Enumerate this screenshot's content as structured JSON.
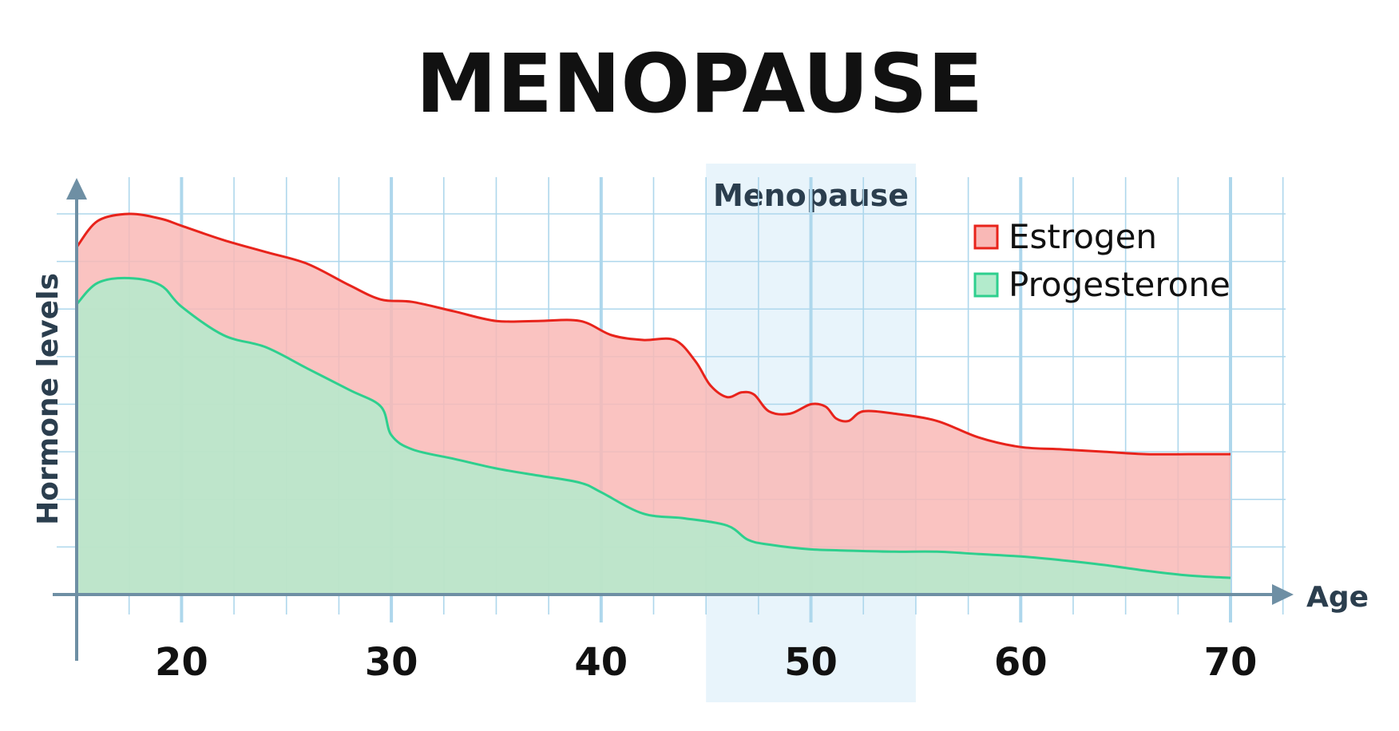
{
  "title": "MENOPAUSE",
  "chart_data": {
    "type": "area",
    "ylabel": "Hormone levels",
    "xlabel": "Age",
    "xlim": [
      15,
      70
    ],
    "ylim": [
      0,
      8
    ],
    "x_ticks": [
      20,
      30,
      40,
      50,
      60,
      70
    ],
    "x_tick_labels": [
      "20",
      "30",
      "40",
      "50",
      "60",
      "70"
    ],
    "grid": true,
    "legend_placement": "top-right",
    "band": {
      "label": "Menopause",
      "x_start": 45,
      "x_end": 55,
      "color": "#e8f4fb"
    },
    "series": [
      {
        "name": "Estrogen",
        "stroke": "#e8231b",
        "fill": "#f9b8b6",
        "points": [
          [
            15,
            7.3
          ],
          [
            16,
            7.85
          ],
          [
            17.5,
            8.0
          ],
          [
            19,
            7.9
          ],
          [
            20,
            7.75
          ],
          [
            22,
            7.45
          ],
          [
            24,
            7.2
          ],
          [
            26,
            6.95
          ],
          [
            28,
            6.5
          ],
          [
            29.5,
            6.2
          ],
          [
            31,
            6.15
          ],
          [
            33,
            5.95
          ],
          [
            35,
            5.75
          ],
          [
            37,
            5.75
          ],
          [
            39,
            5.75
          ],
          [
            40.5,
            5.45
          ],
          [
            42,
            5.35
          ],
          [
            43.5,
            5.35
          ],
          [
            44.5,
            4.9
          ],
          [
            45.2,
            4.4
          ],
          [
            46,
            4.15
          ],
          [
            46.7,
            4.25
          ],
          [
            47.3,
            4.2
          ],
          [
            48,
            3.85
          ],
          [
            49,
            3.8
          ],
          [
            50,
            4.0
          ],
          [
            50.7,
            3.95
          ],
          [
            51.2,
            3.7
          ],
          [
            51.8,
            3.65
          ],
          [
            52.5,
            3.85
          ],
          [
            54,
            3.8
          ],
          [
            56,
            3.65
          ],
          [
            58,
            3.3
          ],
          [
            60,
            3.1
          ],
          [
            62,
            3.05
          ],
          [
            64,
            3.0
          ],
          [
            66,
            2.95
          ],
          [
            68,
            2.95
          ],
          [
            70,
            2.95
          ]
        ]
      },
      {
        "name": "Progesterone",
        "stroke": "#2ecf8e",
        "fill": "#b3ebcc",
        "points": [
          [
            15,
            6.1
          ],
          [
            16,
            6.55
          ],
          [
            17.5,
            6.65
          ],
          [
            19,
            6.5
          ],
          [
            20,
            6.05
          ],
          [
            22,
            5.45
          ],
          [
            24,
            5.2
          ],
          [
            26,
            4.75
          ],
          [
            28,
            4.3
          ],
          [
            29.5,
            3.95
          ],
          [
            30,
            3.35
          ],
          [
            31,
            3.05
          ],
          [
            33,
            2.85
          ],
          [
            35,
            2.65
          ],
          [
            37,
            2.5
          ],
          [
            39,
            2.35
          ],
          [
            40,
            2.15
          ],
          [
            42,
            1.7
          ],
          [
            44,
            1.6
          ],
          [
            46,
            1.45
          ],
          [
            47,
            1.15
          ],
          [
            48,
            1.05
          ],
          [
            50,
            0.95
          ],
          [
            52,
            0.92
          ],
          [
            54,
            0.9
          ],
          [
            56,
            0.9
          ],
          [
            58,
            0.85
          ],
          [
            60,
            0.8
          ],
          [
            62,
            0.72
          ],
          [
            64,
            0.62
          ],
          [
            66,
            0.5
          ],
          [
            68,
            0.4
          ],
          [
            70,
            0.35
          ]
        ]
      }
    ]
  }
}
